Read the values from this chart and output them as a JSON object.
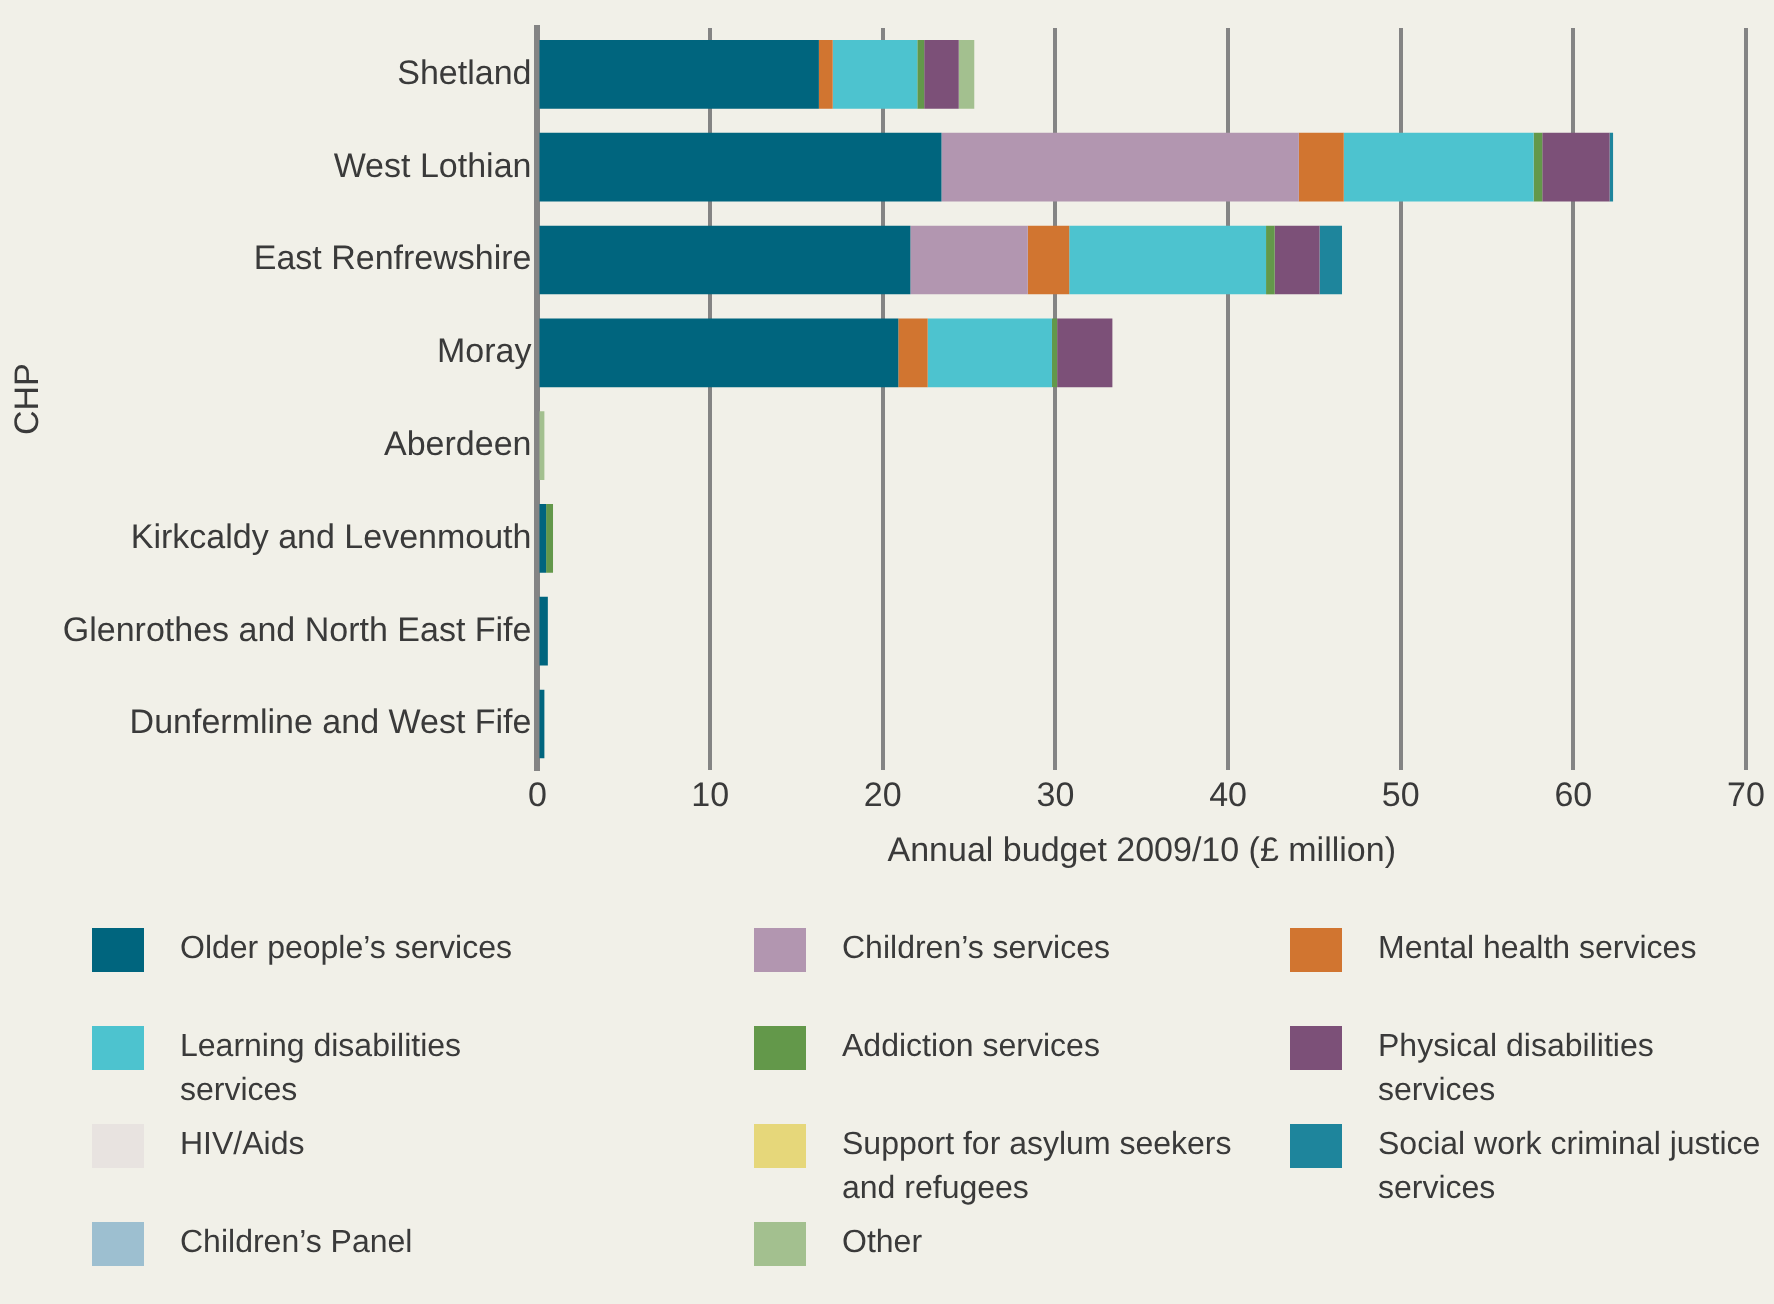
{
  "chart_data": {
    "type": "bar",
    "orientation": "horizontal",
    "stacked": true,
    "xlabel": "Annual budget 2009/10 (£ million)",
    "ylabel": "CHP",
    "categories": [
      "Shetland",
      "West Lothian",
      "East Renfrewshire",
      "Moray",
      "Aberdeen",
      "Kirkcaldy and Levenmouth",
      "Glenrothes and North East Fife",
      "Dunfermline and West Fife"
    ],
    "xlim": [
      0,
      70
    ],
    "xticks": [
      0,
      10,
      20,
      30,
      40,
      50,
      60,
      70
    ],
    "grid": "x",
    "legend": "bottom",
    "series": [
      {
        "name": "Older people’s services",
        "color": "#00657e",
        "values": [
          16.3,
          23.4,
          21.6,
          20.9,
          0,
          0.5,
          0.6,
          0.4
        ]
      },
      {
        "name": "Children’s services",
        "color": "#b296b0",
        "values": [
          0,
          20.7,
          6.8,
          0,
          0,
          0,
          0,
          0
        ]
      },
      {
        "name": "Mental health services",
        "color": "#d17530",
        "values": [
          0.8,
          2.6,
          2.4,
          1.7,
          0,
          0,
          0,
          0
        ]
      },
      {
        "name": "Learning disabilities services",
        "color": "#4dc3cf",
        "values": [
          4.9,
          11,
          11.4,
          7.2,
          0,
          0,
          0,
          0
        ]
      },
      {
        "name": "Addiction services",
        "color": "#63984a",
        "values": [
          0.4,
          0.5,
          0.5,
          0.3,
          0,
          0.4,
          0,
          0
        ]
      },
      {
        "name": "Physical disabilities services",
        "color": "#7c5078",
        "values": [
          2,
          3.9,
          2.6,
          3.2,
          0,
          0,
          0,
          0
        ]
      },
      {
        "name": "HIV/Aids",
        "color": "#e8e3e0",
        "values": [
          0,
          0,
          0,
          0,
          0,
          0,
          0,
          0
        ]
      },
      {
        "name": "Support for asylum seekers and refugees",
        "color": "#e6d77a",
        "values": [
          0,
          0,
          0,
          0,
          0,
          0,
          0,
          0
        ]
      },
      {
        "name": "Social work criminal justice services",
        "color": "#1e859c",
        "values": [
          0,
          0.2,
          1.3,
          0,
          0,
          0,
          0,
          0
        ]
      },
      {
        "name": "Children’s Panel",
        "color": "#9dbfd0",
        "values": [
          0,
          0,
          0,
          0,
          0,
          0,
          0,
          0
        ]
      },
      {
        "name": "Other",
        "color": "#a3c08f",
        "values": [
          0.9,
          0,
          0,
          0,
          0.4,
          0,
          0,
          0
        ]
      }
    ]
  }
}
